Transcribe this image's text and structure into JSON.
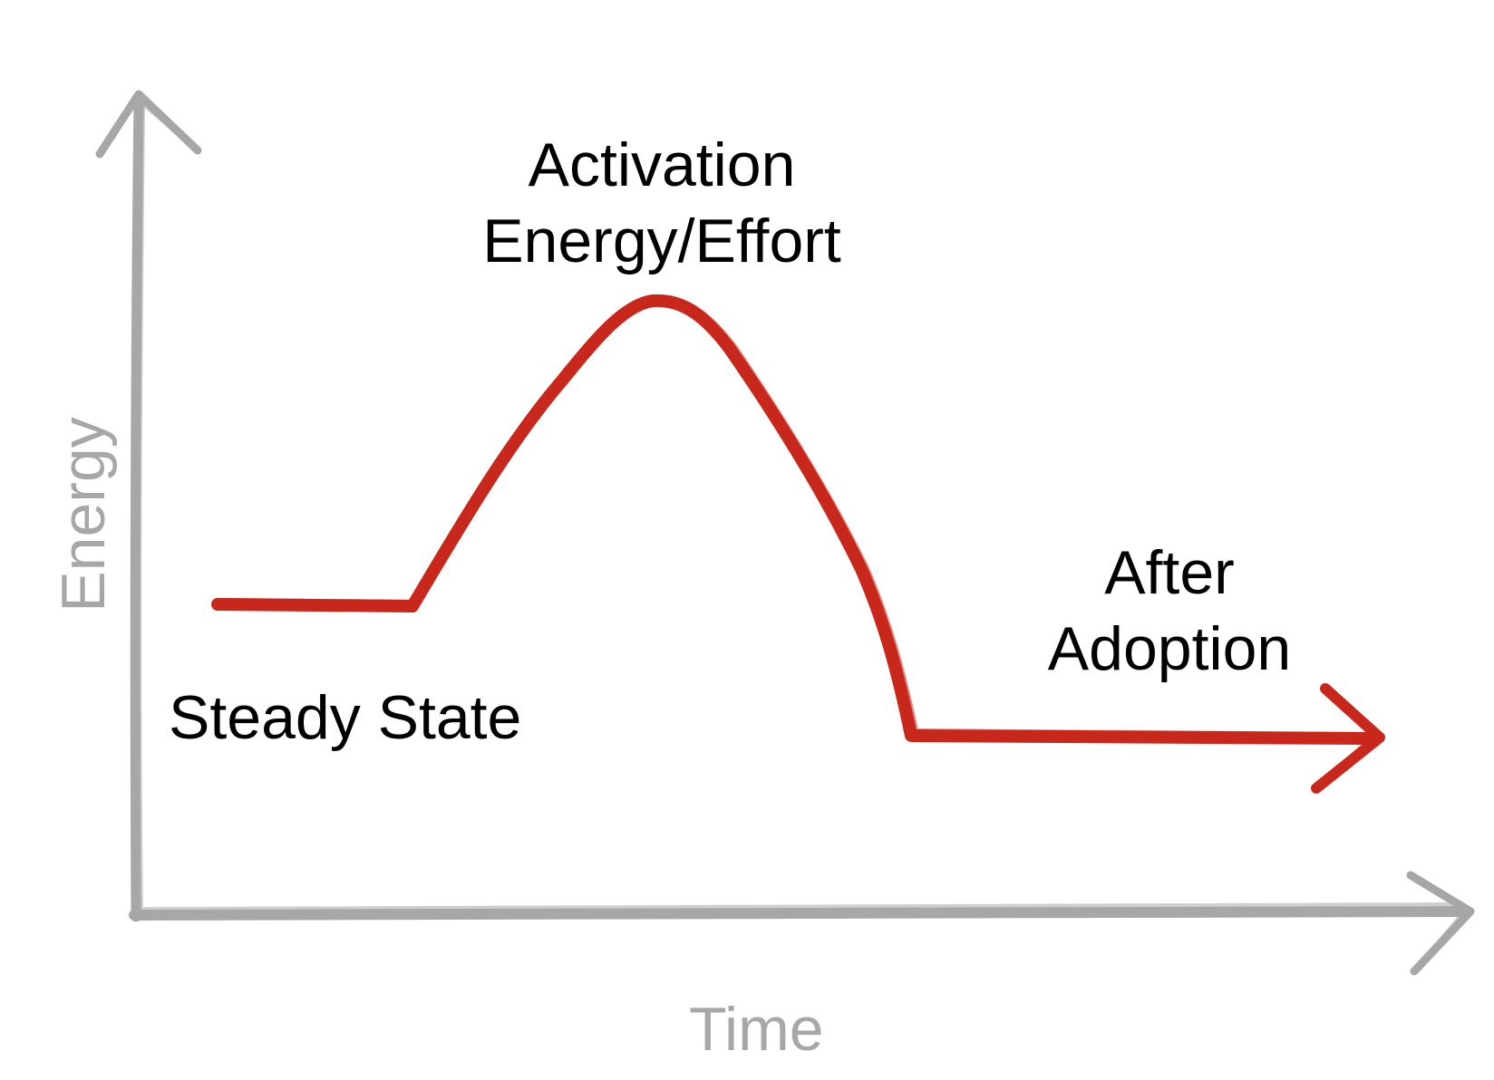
{
  "colors": {
    "axis": "#a6a8a7",
    "curve": "#c8281c",
    "text": "#000000",
    "axis_text": "#a6a8a7"
  },
  "axes": {
    "x_label": "Time",
    "y_label": "Energy"
  },
  "annotations": {
    "peak": [
      "Activation",
      "Energy/Effort"
    ],
    "start": "Steady State",
    "end": [
      "After",
      "Adoption"
    ]
  }
}
